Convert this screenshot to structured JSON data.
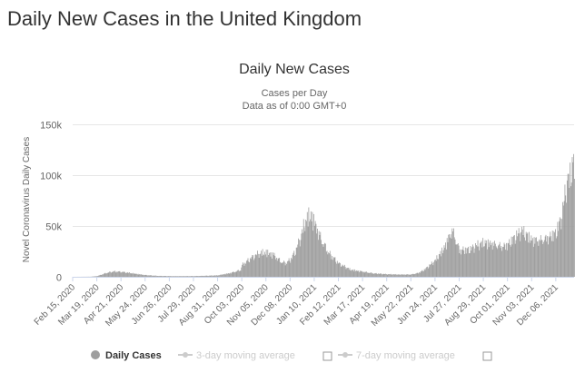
{
  "page": {
    "heading": "Daily New Cases in the United Kingdom"
  },
  "chart_data": {
    "type": "bar",
    "title": "Daily New Cases",
    "subtitle_line1": "Cases per Day",
    "subtitle_line2": "Data as of 0:00 GMT+0",
    "ylabel": "Novel Coronavirus Daily Cases",
    "xlabel": "",
    "ylim": [
      0,
      150000
    ],
    "y_ticks": [
      {
        "value": 0,
        "label": "0"
      },
      {
        "value": 50000,
        "label": "50k"
      },
      {
        "value": 100000,
        "label": "100k"
      },
      {
        "value": 150000,
        "label": "150k"
      }
    ],
    "x_tick_labels": [
      "Feb 15, 2020",
      "Mar 19, 2020",
      "Apr 21, 2020",
      "May 24, 2020",
      "Jun 26, 2020",
      "Jul 29, 2020",
      "Aug 31, 2020",
      "Oct 03, 2020",
      "Nov 05, 2020",
      "Dec 08, 2020",
      "Jan 10, 2021",
      "Feb 12, 2021",
      "Mar 17, 2021",
      "Apr 19, 2021",
      "May 22, 2021",
      "Jun 24, 2021",
      "Jul 27, 2021",
      "Aug 29, 2021",
      "Oct 01, 2021",
      "Nov 03, 2021",
      "Dec 06, 2021"
    ],
    "x_range_days": [
      "Feb 15, 2020",
      "Dec 31, 2021"
    ],
    "grid": true,
    "color": "#9e9e9e",
    "series": [
      {
        "name": "Daily Cases",
        "color": "#9e9e9e",
        "daily_case_anchors": [
          [
            "Feb 15, 2020",
            0
          ],
          [
            "Mar 10, 2020",
            100
          ],
          [
            "Mar 19, 2020",
            700
          ],
          [
            "Apr 01, 2020",
            4000
          ],
          [
            "Apr 10, 2020",
            5200
          ],
          [
            "Apr 21, 2020",
            4700
          ],
          [
            "May 10, 2020",
            3000
          ],
          [
            "May 24, 2020",
            1800
          ],
          [
            "Jun 10, 2020",
            900
          ],
          [
            "Jul 01, 2020",
            600
          ],
          [
            "Jul 29, 2020",
            750
          ],
          [
            "Aug 20, 2020",
            1100
          ],
          [
            "Aug 31, 2020",
            1400
          ],
          [
            "Sep 15, 2020",
            3500
          ],
          [
            "Oct 01, 2020",
            7000
          ],
          [
            "Oct 03, 2020",
            12000
          ],
          [
            "Oct 15, 2020",
            18000
          ],
          [
            "Oct 25, 2020",
            22000
          ],
          [
            "Nov 05, 2020",
            24000
          ],
          [
            "Nov 15, 2020",
            23000
          ],
          [
            "Nov 25, 2020",
            16000
          ],
          [
            "Dec 01, 2020",
            14000
          ],
          [
            "Dec 08, 2020",
            17000
          ],
          [
            "Dec 15, 2020",
            25000
          ],
          [
            "Dec 22, 2020",
            38000
          ],
          [
            "Dec 29, 2020",
            55000
          ],
          [
            "Jan 05, 2021",
            62000
          ],
          [
            "Jan 10, 2021",
            56000
          ],
          [
            "Jan 20, 2021",
            38000
          ],
          [
            "Jan 30, 2021",
            24000
          ],
          [
            "Feb 12, 2021",
            13000
          ],
          [
            "Feb 28, 2021",
            7000
          ],
          [
            "Mar 17, 2021",
            5500
          ],
          [
            "Apr 01, 2021",
            3500
          ],
          [
            "Apr 19, 2021",
            2500
          ],
          [
            "May 05, 2021",
            2300
          ],
          [
            "May 22, 2021",
            2500
          ],
          [
            "Jun 01, 2021",
            4000
          ],
          [
            "Jun 10, 2021",
            7500
          ],
          [
            "Jun 24, 2021",
            16000
          ],
          [
            "Jul 05, 2021",
            28000
          ],
          [
            "Jul 17, 2021",
            50000
          ],
          [
            "Jul 27, 2021",
            28000
          ],
          [
            "Aug 10, 2021",
            27000
          ],
          [
            "Aug 29, 2021",
            34000
          ],
          [
            "Sep 10, 2021",
            35000
          ],
          [
            "Sep 25, 2021",
            32000
          ],
          [
            "Oct 01, 2021",
            33000
          ],
          [
            "Oct 20, 2021",
            45000
          ],
          [
            "Nov 03, 2021",
            38000
          ],
          [
            "Nov 20, 2021",
            40000
          ],
          [
            "Dec 06, 2021",
            44000
          ],
          [
            "Dec 14, 2021",
            60000
          ],
          [
            "Dec 20, 2021",
            90000
          ],
          [
            "Dec 25, 2021",
            100000
          ],
          [
            "Dec 31, 2021",
            120000
          ]
        ]
      }
    ],
    "legend": {
      "position": "bottom",
      "items": [
        {
          "label": "Daily Cases",
          "active": true
        },
        {
          "label": "3-day moving average",
          "active": false
        },
        {
          "label": "7-day moving average",
          "active": false
        }
      ]
    }
  }
}
